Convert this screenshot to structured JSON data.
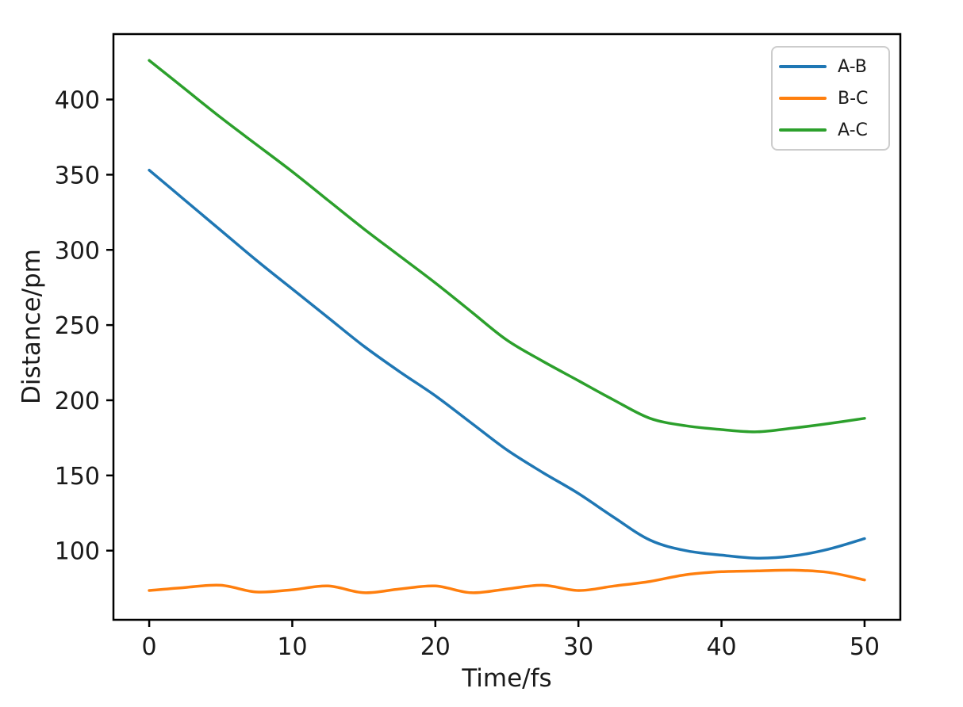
{
  "figure": {
    "background": "#ffffff",
    "text_color": "#1a1a1a",
    "spine_color": "#000000"
  },
  "chart_data": {
    "type": "line",
    "title": "",
    "xlabel": "Time/fs",
    "ylabel": "Distance/pm",
    "xlim": [
      -2.5,
      52.5
    ],
    "ylim": [
      54,
      443.5
    ],
    "xticks": [
      0,
      10,
      20,
      30,
      40,
      50
    ],
    "yticks": [
      100,
      150,
      200,
      250,
      300,
      350,
      400
    ],
    "grid": false,
    "legend_position": "upper right",
    "x": [
      0,
      2.5,
      5,
      7.5,
      10,
      12.5,
      15,
      17.5,
      20,
      22.5,
      25,
      27.5,
      30,
      32.5,
      35,
      37.5,
      40,
      42.5,
      45,
      47.5,
      50
    ],
    "series": [
      {
        "name": "A-B",
        "color": "#1f77b4",
        "values": [
          353,
          333,
          313,
          293,
          274,
          255,
          236,
          219,
          203,
          185,
          167,
          152,
          138,
          122,
          107,
          100,
          97,
          95,
          96.5,
          101,
          108
        ]
      },
      {
        "name": "B-C",
        "color": "#ff7f0e",
        "values": [
          73.5,
          75.5,
          77,
          72.5,
          74,
          76.5,
          72,
          74.5,
          76.5,
          72,
          74.5,
          77,
          73.5,
          76.5,
          79.5,
          84,
          86,
          86.5,
          87,
          85.5,
          80.5
        ]
      },
      {
        "name": "A-C",
        "color": "#2ca02c",
        "values": [
          426,
          407,
          388,
          370,
          352,
          333,
          314,
          296,
          278,
          259,
          240,
          226,
          213,
          200,
          188,
          183,
          180.5,
          179,
          181.5,
          184.5,
          188
        ]
      }
    ]
  }
}
